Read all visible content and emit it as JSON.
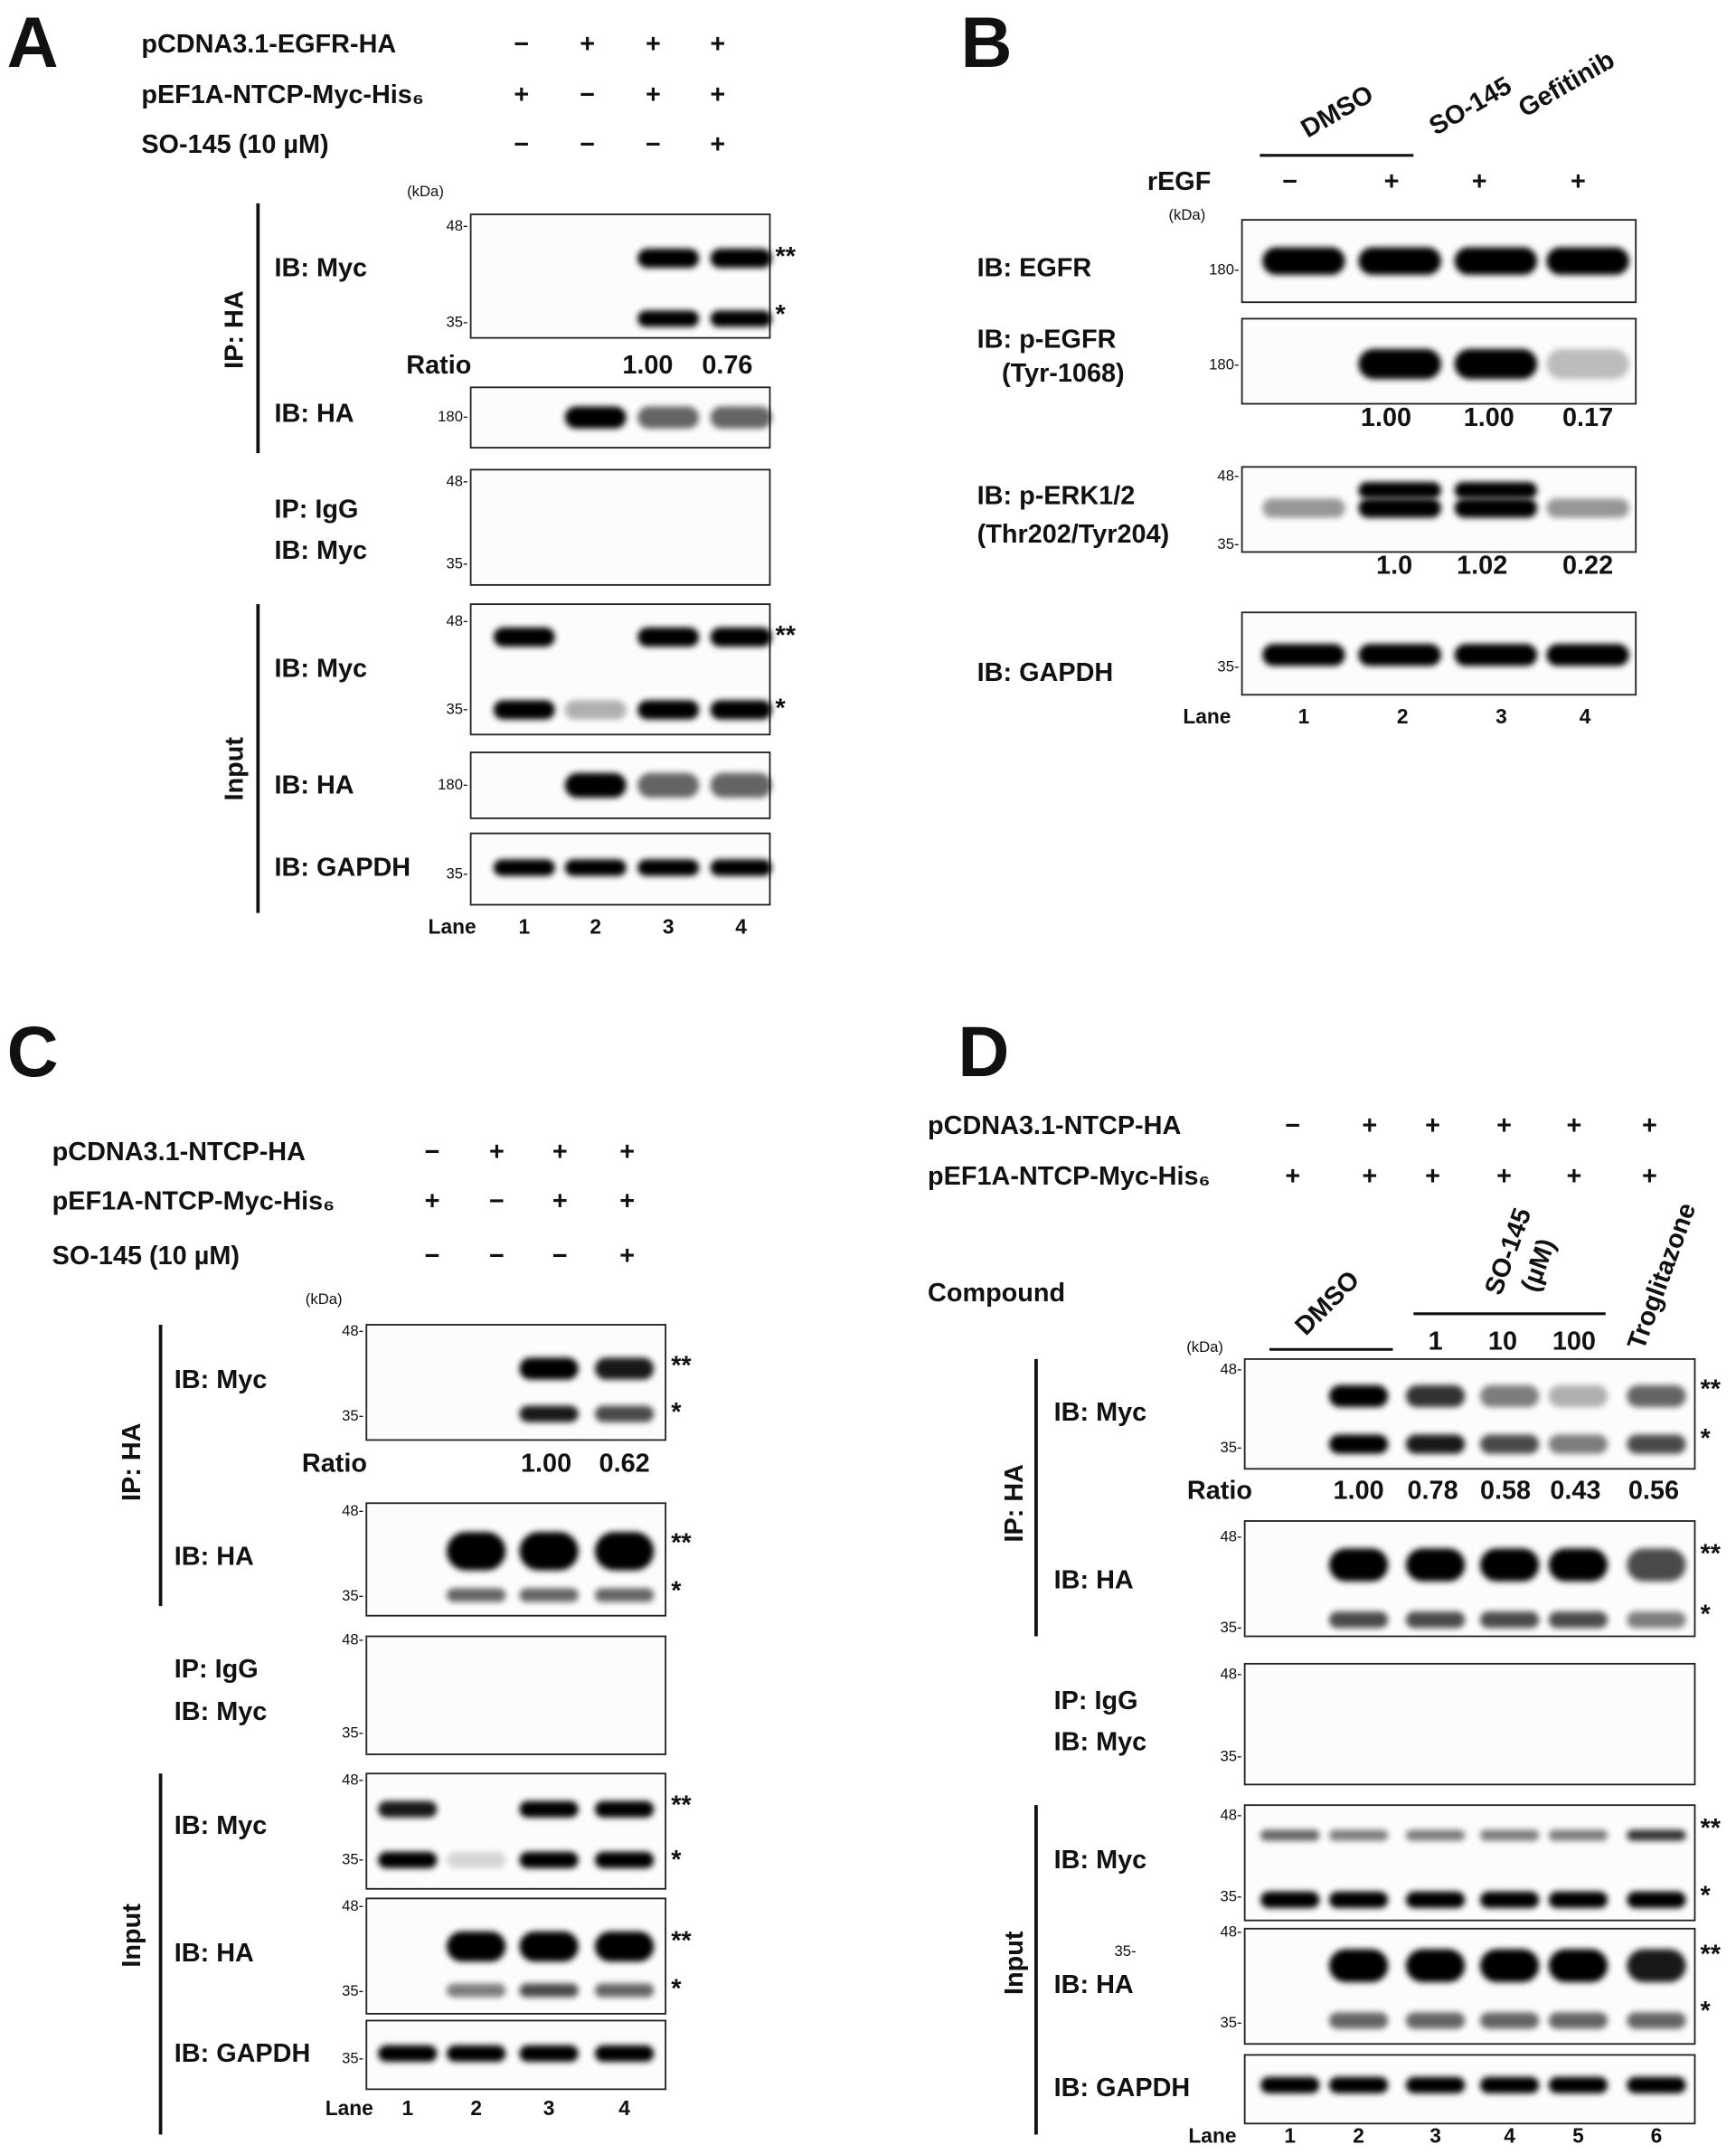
{
  "panels": [
    {
      "label": "A",
      "conditions": [
        {
          "name": "pCDNA3.1-EGFR-HA",
          "signs": [
            "−",
            "+",
            "+",
            "+"
          ]
        },
        {
          "name": "pEF1A-NTCP-Myc-His₆",
          "signs": [
            "+",
            "−",
            "+",
            "+"
          ]
        },
        {
          "name": "SO-145 (10 µM)",
          "signs": [
            "−",
            "−",
            "−",
            "+"
          ]
        }
      ],
      "kda_unit": "(kDa)",
      "groups": [
        "IP: HA",
        "Input"
      ],
      "blots": [
        {
          "labels": [
            "IB: Myc"
          ],
          "markers": [
            "48-",
            "35-"
          ],
          "band_labels": [
            "**",
            "*"
          ],
          "ratio": {
            "label": "Ratio",
            "values": [
              "1.00",
              "0.76"
            ]
          }
        },
        {
          "labels": [
            "IB: HA"
          ],
          "markers": [
            "180-"
          ]
        },
        {
          "labels": [
            "IP: IgG",
            "IB: Myc"
          ],
          "markers": [
            "48-",
            "35-"
          ]
        },
        {
          "labels": [
            "IB: Myc"
          ],
          "markers": [
            "48-",
            "35-"
          ],
          "band_labels": [
            "**",
            "*"
          ]
        },
        {
          "labels": [
            "IB: HA"
          ],
          "markers": [
            "180-"
          ]
        },
        {
          "labels": [
            "IB: GAPDH"
          ],
          "markers": [
            "35-"
          ]
        }
      ],
      "lane": {
        "label": "Lane",
        "numbers": [
          "1",
          "2",
          "3",
          "4"
        ]
      }
    },
    {
      "label": "B",
      "treatments": [
        "DMSO",
        "SO-145",
        "Gefitinib"
      ],
      "conditions": [
        {
          "name": "rEGF",
          "signs": [
            "−",
            "+",
            "+",
            "+"
          ]
        }
      ],
      "kda_unit": "(kDa)",
      "blots": [
        {
          "labels": [
            "IB: EGFR"
          ],
          "markers": [
            "180-"
          ]
        },
        {
          "labels": [
            "IB: p-EGFR",
            "(Tyr-1068)"
          ],
          "markers": [
            "180-"
          ],
          "ratio": {
            "values": [
              "1.00",
              "1.00",
              "0.17"
            ]
          }
        },
        {
          "labels": [
            "IB: p-ERK1/2",
            "(Thr202/Tyr204)"
          ],
          "markers": [
            "48-",
            "35-"
          ],
          "ratio": {
            "values": [
              "1.0",
              "1.02",
              "0.22"
            ]
          }
        },
        {
          "labels": [
            "IB: GAPDH"
          ],
          "markers": [
            "35-"
          ]
        }
      ],
      "lane": {
        "label": "Lane",
        "numbers": [
          "1",
          "2",
          "3",
          "4"
        ]
      }
    },
    {
      "label": "C",
      "conditions": [
        {
          "name": "pCDNA3.1-NTCP-HA",
          "signs": [
            "−",
            "+",
            "+",
            "+"
          ]
        },
        {
          "name": "pEF1A-NTCP-Myc-His₆",
          "signs": [
            "+",
            "−",
            "+",
            "+"
          ]
        },
        {
          "name": "SO-145 (10 µM)",
          "signs": [
            "−",
            "−",
            "−",
            "+"
          ]
        }
      ],
      "kda_unit": "(kDa)",
      "groups": [
        "IP: HA",
        "Input"
      ],
      "blots": [
        {
          "labels": [
            "IB: Myc"
          ],
          "markers": [
            "48-",
            "35-"
          ],
          "band_labels": [
            "**",
            "*"
          ],
          "ratio": {
            "label": "Ratio",
            "values": [
              "1.00",
              "0.62"
            ]
          }
        },
        {
          "labels": [
            "IB: HA"
          ],
          "markers": [
            "48-",
            "35-"
          ],
          "band_labels": [
            "**",
            "*"
          ]
        },
        {
          "labels": [
            "IP: IgG",
            "IB: Myc"
          ],
          "markers": [
            "48-",
            "35-"
          ]
        },
        {
          "labels": [
            "IB: Myc"
          ],
          "markers": [
            "48-",
            "35-"
          ],
          "band_labels": [
            "**",
            "*"
          ]
        },
        {
          "labels": [
            "IB: HA"
          ],
          "markers": [
            "48-",
            "35-"
          ],
          "band_labels": [
            "**",
            "*"
          ]
        },
        {
          "labels": [
            "IB: GAPDH"
          ],
          "markers": [
            "35-"
          ]
        }
      ],
      "lane": {
        "label": "Lane",
        "numbers": [
          "1",
          "2",
          "3",
          "4"
        ]
      }
    },
    {
      "label": "D",
      "conditions": [
        {
          "name": "pCDNA3.1-NTCP-HA",
          "signs": [
            "−",
            "+",
            "+",
            "+",
            "+",
            "+"
          ]
        },
        {
          "name": "pEF1A-NTCP-Myc-His₆",
          "signs": [
            "+",
            "+",
            "+",
            "+",
            "+",
            "+"
          ]
        }
      ],
      "compound": {
        "label": "Compound",
        "headers": [
          "DMSO",
          "SO-145",
          "(µM)",
          "Troglitazone"
        ],
        "doses": [
          "1",
          "10",
          "100"
        ]
      },
      "kda_unit": "(kDa)",
      "groups": [
        "IP: HA",
        "Input"
      ],
      "blots": [
        {
          "labels": [
            "IB: Myc"
          ],
          "markers": [
            "48-",
            "35-"
          ],
          "band_labels": [
            "**",
            "*"
          ],
          "ratio": {
            "label": "Ratio",
            "values": [
              "1.00",
              "0.78",
              "0.58",
              "0.43",
              "0.56"
            ]
          }
        },
        {
          "labels": [
            "IB: HA"
          ],
          "markers": [
            "48-",
            "35-"
          ],
          "band_labels": [
            "**",
            "*"
          ]
        },
        {
          "labels": [
            "IP: IgG",
            "IB: Myc"
          ],
          "markers": [
            "48-",
            "35-"
          ]
        },
        {
          "labels": [
            "IB: Myc"
          ],
          "markers": [
            "48-",
            "35-"
          ],
          "band_labels": [
            "**",
            "*"
          ]
        },
        {
          "labels": [
            "IB: HA"
          ],
          "markers": [
            "48-",
            "35-"
          ],
          "band_labels": [
            "**",
            "*"
          ],
          "extra_marker": "35-"
        },
        {
          "labels": [
            "IB: GAPDH"
          ]
        }
      ],
      "lane": {
        "label": "Lane",
        "numbers": [
          "1",
          "2",
          "3",
          "4",
          "5",
          "6"
        ]
      }
    }
  ]
}
